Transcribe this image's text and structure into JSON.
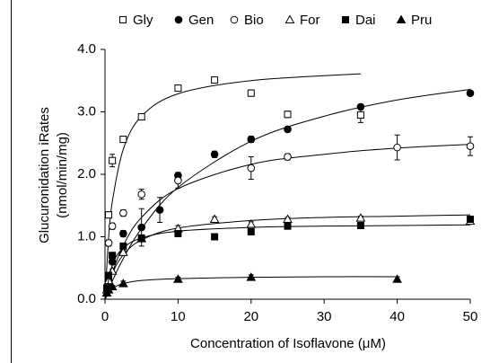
{
  "chart_data": {
    "type": "scatter",
    "x_label": "Concentration of Isoflavone (μM)",
    "y_label": [
      "Glucuronidation iRates",
      "(nmol/min/mg)"
    ],
    "xlim": [
      0,
      50
    ],
    "xticks": [
      0,
      10,
      20,
      30,
      40,
      50
    ],
    "ylim": [
      0,
      4
    ],
    "yticks": [
      {
        "value": 0,
        "label": "0.0"
      },
      {
        "value": 1,
        "label": "1.0"
      },
      {
        "value": 2,
        "label": "2.0"
      },
      {
        "value": 3,
        "label": "3.0"
      },
      {
        "value": 4,
        "label": "4.0"
      }
    ],
    "legend": "top",
    "series": [
      {
        "name": "Gly",
        "color": "#000000",
        "marker": "square",
        "filled": false,
        "x": [
          0.5,
          1,
          2.5,
          5,
          10,
          15,
          20,
          25,
          35
        ],
        "values": [
          1.35,
          2.22,
          2.56,
          2.92,
          3.38,
          3.51,
          3.3,
          2.96,
          2.95
        ],
        "errors": [
          0.05,
          0.1,
          0.05,
          0.05,
          0.03,
          0.05,
          0.05,
          0.05,
          0.12
        ],
        "curve": {
          "x": [
            0,
            0.5,
            1,
            2.5,
            5,
            10,
            20,
            35
          ],
          "y": [
            0,
            0.99,
            1.56,
            2.4,
            2.93,
            3.29,
            3.5,
            3.61
          ]
        }
      },
      {
        "name": "Gen",
        "color": "#000000",
        "marker": "circle",
        "filled": true,
        "x": [
          0.5,
          1,
          2.5,
          5,
          7.5,
          10,
          15,
          20,
          25,
          35,
          50
        ],
        "values": [
          0.3,
          0.6,
          1.05,
          1.15,
          1.43,
          1.98,
          2.32,
          2.56,
          2.72,
          3.08,
          3.3
        ],
        "errors": [
          0.03,
          0.03,
          0.05,
          0.3,
          0.2,
          0.05,
          0.05,
          0.05,
          0.04,
          0.04,
          0.04
        ],
        "curve": {
          "x": [
            0,
            1,
            2.5,
            5,
            10,
            20,
            30,
            40,
            50
          ],
          "y": [
            0,
            0.29,
            0.65,
            1.13,
            1.79,
            2.53,
            2.93,
            3.19,
            3.36
          ]
        }
      },
      {
        "name": "Bio",
        "color": "#000000",
        "marker": "circle",
        "filled": false,
        "x": [
          0.5,
          1,
          2.5,
          5,
          10,
          20,
          25,
          40,
          50
        ],
        "values": [
          0.9,
          1.17,
          1.38,
          1.68,
          1.9,
          2.1,
          2.28,
          2.43,
          2.45
        ],
        "errors": [
          0.05,
          0.05,
          0.05,
          0.08,
          0.12,
          0.18,
          0.05,
          0.2,
          0.15
        ],
        "curve": {
          "x": [
            0,
            1,
            2.5,
            5,
            10,
            20,
            30,
            40,
            50
          ],
          "y": [
            0,
            0.42,
            0.86,
            1.31,
            1.77,
            2.16,
            2.32,
            2.42,
            2.48
          ]
        }
      },
      {
        "name": "For",
        "color": "#000000",
        "marker": "triangle",
        "filled": false,
        "x": [
          0.25,
          0.5,
          1,
          2.5,
          5,
          10,
          15,
          20,
          25,
          35,
          50
        ],
        "values": [
          0.15,
          0.3,
          0.45,
          0.75,
          0.97,
          1.13,
          1.28,
          1.2,
          1.28,
          1.3,
          1.25
        ],
        "errors": [
          0.02,
          0.02,
          0.03,
          0.03,
          0.03,
          0.05,
          0.04,
          0.04,
          0.03,
          0.03,
          0.03
        ],
        "curve": {
          "x": [
            0,
            1,
            2.5,
            5,
            10,
            20,
            30,
            40,
            50
          ],
          "y": [
            0,
            0.41,
            0.71,
            0.95,
            1.14,
            1.26,
            1.31,
            1.33,
            1.35
          ]
        }
      },
      {
        "name": "Dai",
        "color": "#000000",
        "marker": "square",
        "filled": true,
        "x": [
          0.25,
          0.5,
          1,
          2.5,
          5,
          10,
          15,
          20,
          25,
          35,
          50
        ],
        "values": [
          0.18,
          0.38,
          0.7,
          0.85,
          0.98,
          1.05,
          1.0,
          1.08,
          1.17,
          1.18,
          1.28
        ],
        "errors": [
          0.02,
          0.03,
          0.05,
          0.05,
          0.03,
          0.04,
          0.03,
          0.04,
          0.04,
          0.03,
          0.04
        ],
        "curve": {
          "x": [
            0,
            1,
            2.5,
            5,
            10,
            20,
            30,
            40,
            50
          ],
          "y": [
            0,
            0.55,
            0.82,
            0.98,
            1.09,
            1.15,
            1.17,
            1.18,
            1.19
          ]
        }
      },
      {
        "name": "Pru",
        "color": "#000000",
        "marker": "triangle",
        "filled": true,
        "x": [
          0.25,
          0.5,
          1,
          2.5,
          10,
          20,
          40
        ],
        "values": [
          0.1,
          0.15,
          0.2,
          0.25,
          0.32,
          0.35,
          0.32
        ],
        "errors": [
          0.02,
          0.02,
          0.02,
          0.04,
          0.03,
          0.04,
          0.04
        ],
        "curve": {
          "x": [
            0,
            1,
            2.5,
            5,
            10,
            20,
            30,
            40
          ],
          "y": [
            0,
            0.17,
            0.25,
            0.3,
            0.33,
            0.35,
            0.36,
            0.36
          ]
        }
      }
    ]
  }
}
